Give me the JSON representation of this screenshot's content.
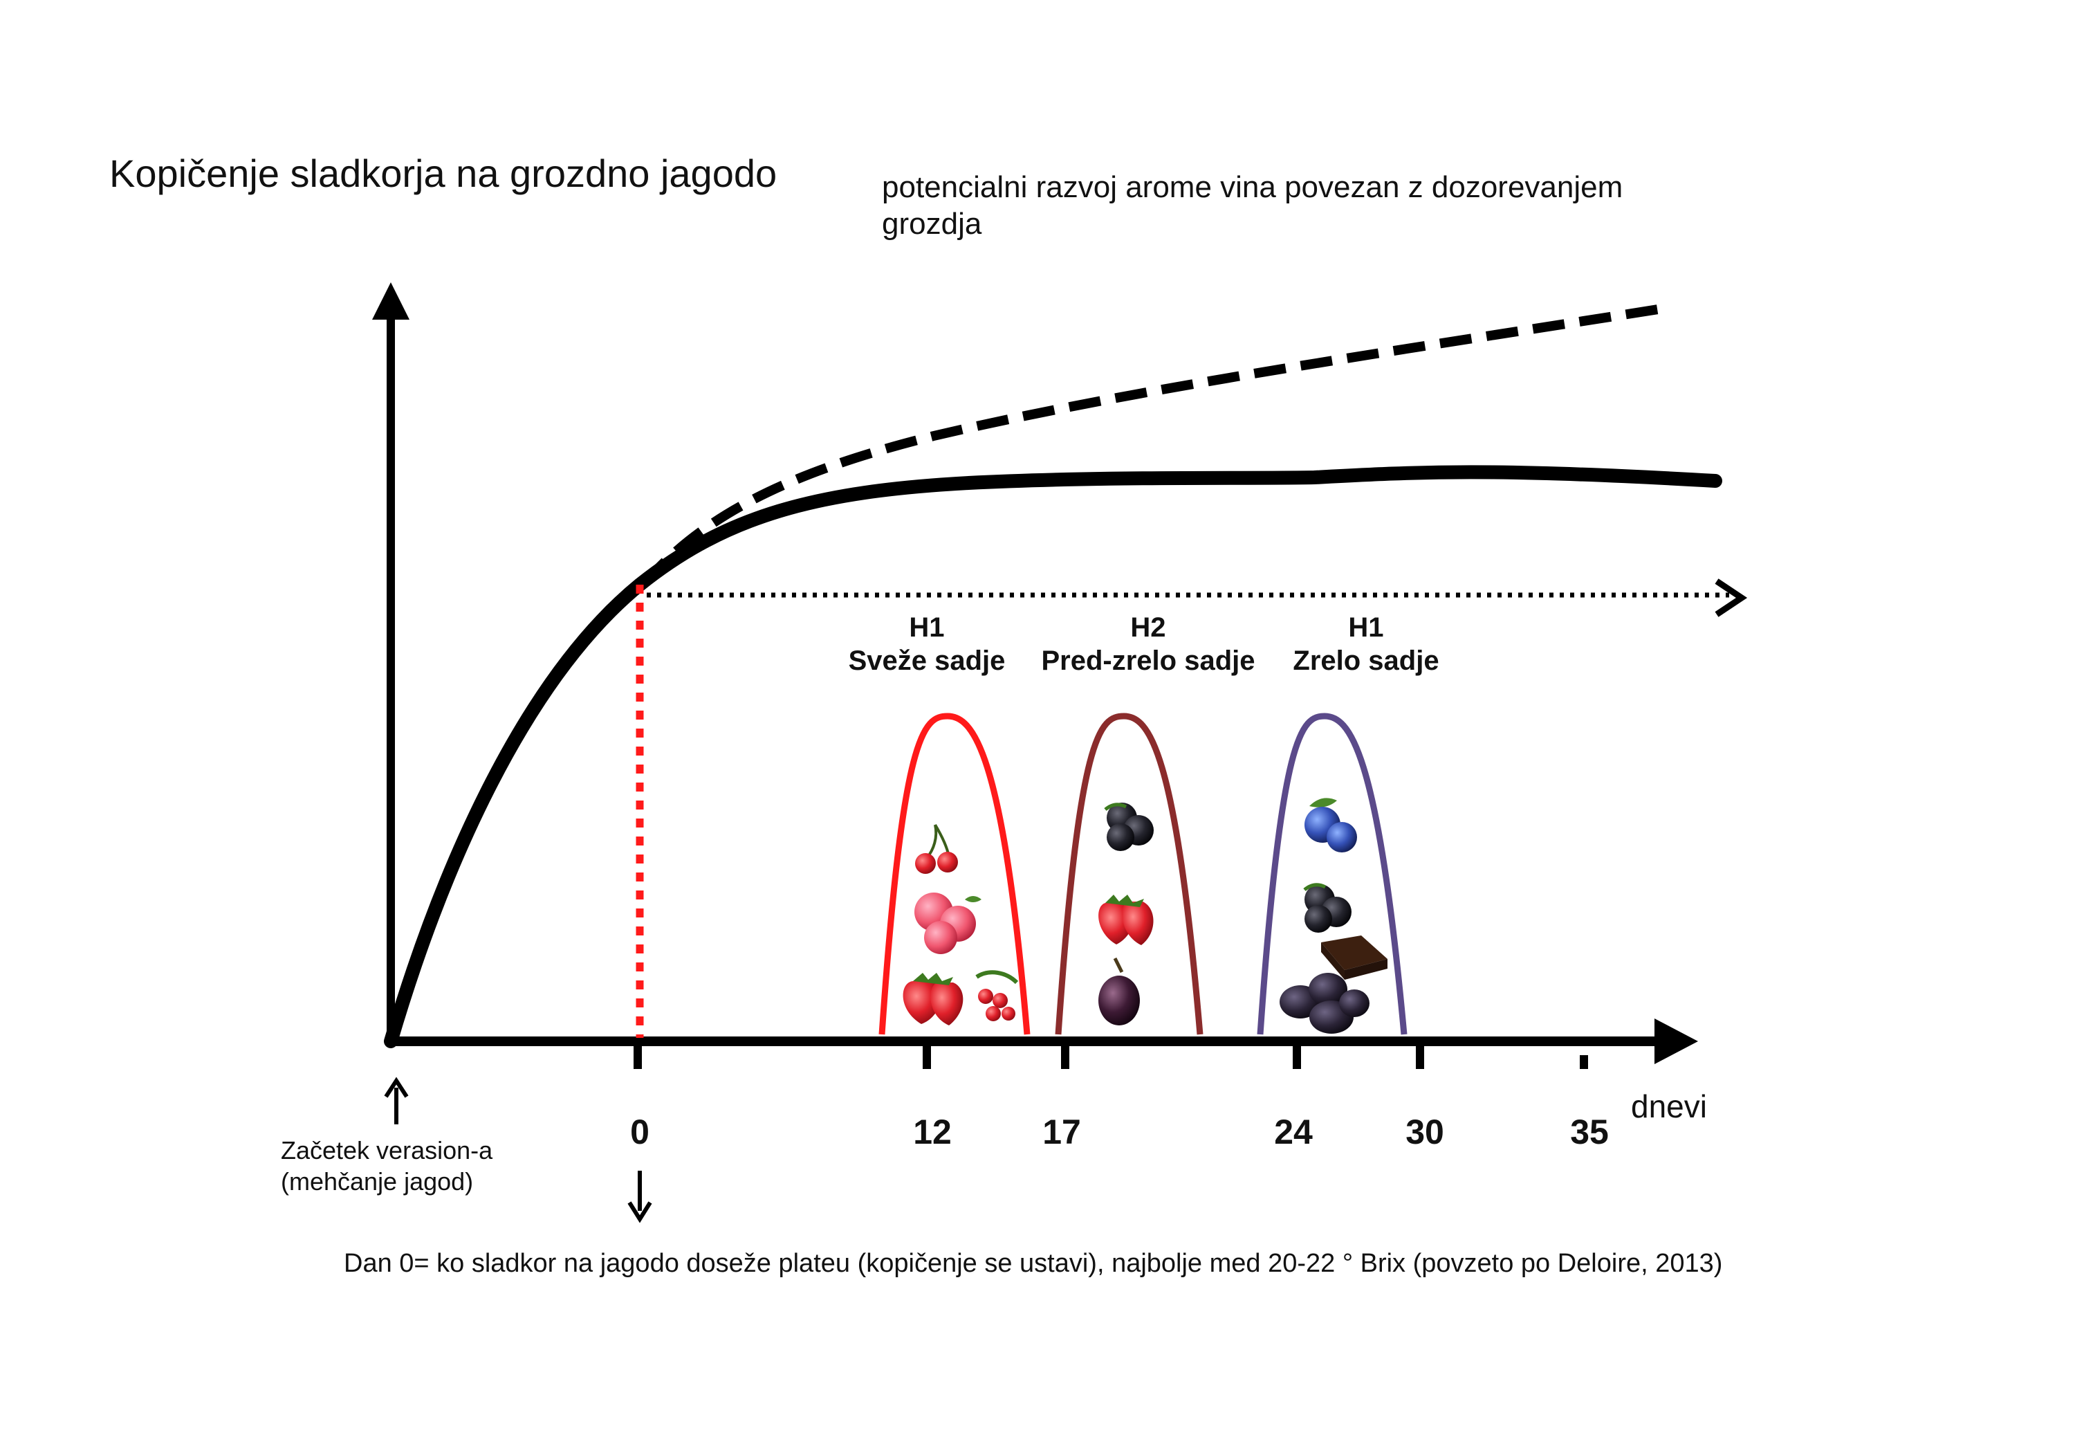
{
  "title": "Kopičenje sladkorja na grozdno jagodo",
  "subtitle_lines": [
    "potencialni razvoj arome vina povezan z dozorevanjem",
    "grozdja"
  ],
  "x_axis": {
    "unit_label": "dnevi",
    "ticks": [
      "0",
      "12",
      "17",
      "24",
      "30",
      "35"
    ]
  },
  "start_note_lines": [
    "Začetek verasion-a",
    "(mehčanje jagod)"
  ],
  "caption": "Dan 0= ko sladkor na jagodo doseže plateu (kopičenje se ustavi), najbolje med 20-22 ° Brix (povzeto po Deloire, 2013)",
  "phases": [
    {
      "code": "H1",
      "name": "Sveže sadje",
      "color": "#ff1a1a",
      "icons": [
        "cherry-icon",
        "raspberry-icon",
        "strawberry-icon",
        "redcurrant-icon"
      ]
    },
    {
      "code": "H2",
      "name": "Pred-zrelo sadje",
      "color": "#8b2c2c",
      "icons": [
        "blackberry-icon",
        "strawberry-icon",
        "plum-icon"
      ]
    },
    {
      "code": "H1",
      "name": "Zrelo sadje",
      "color": "#5b4a8a",
      "icons": [
        "blueberry-icon",
        "blackberry-icon",
        "chocolate-icon",
        "prune-icon"
      ]
    }
  ],
  "colors": {
    "curve": "#000000",
    "day0_marker": "#ff1a1a"
  }
}
